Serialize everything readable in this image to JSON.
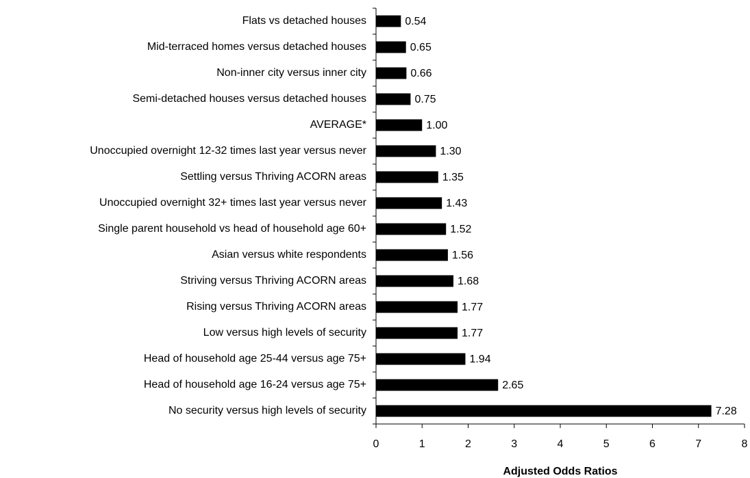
{
  "chart_data": {
    "type": "barh",
    "categories": [
      "Flats vs detached houses",
      "Mid-terraced homes versus detached houses",
      "Non-inner city versus inner city",
      "Semi-detached houses versus detached houses",
      "AVERAGE*",
      "Unoccupied overnight 12-32 times last year versus never",
      "Settling versus Thriving ACORN areas",
      "Unoccupied overnight 32+ times last year versus never",
      "Single parent household vs head of household age 60+",
      "Asian versus white respondents",
      "Striving versus Thriving ACORN areas",
      "Rising versus Thriving ACORN areas",
      "Low versus high levels of security",
      "Head of household age 25-44 versus age 75+",
      "Head of household age 16-24 versus age 75+",
      "No security versus high levels of security"
    ],
    "values": [
      0.54,
      0.65,
      0.66,
      0.75,
      1,
      1.3,
      1.35,
      1.43,
      1.52,
      1.56,
      1.68,
      1.77,
      1.77,
      1.94,
      2.65,
      7.28
    ],
    "value_labels": [
      "0.54",
      "0.65",
      "0.66",
      "0.75",
      "1.00",
      "1.30",
      "1.35",
      "1.43",
      "1.52",
      "1.56",
      "1.68",
      "1.77",
      "1.77",
      "1.94",
      "2.65",
      "7.28"
    ],
    "color": "#000000",
    "xlabel": "Adjusted Odds Ratios",
    "xlim": [
      0,
      8
    ],
    "xticks": [
      0,
      1,
      2,
      3,
      4,
      5,
      6,
      7,
      8
    ],
    "grid": false
  }
}
